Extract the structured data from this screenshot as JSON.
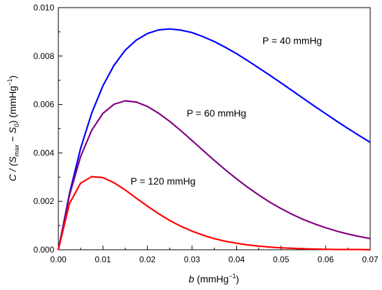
{
  "chart_data": {
    "type": "line",
    "title": "",
    "xlabel": {
      "italic": "b",
      "unit_base": " (mmHg",
      "unit_sup": "−1",
      "unit_close": ")"
    },
    "ylabel": {
      "pre": "C / (",
      "s_max": "S",
      "s_max_sub": "max",
      "minus": " − ",
      "s0": "S",
      "s0_sub": "0",
      "unit_base": ") (mmHg",
      "unit_sup": "−1",
      "unit_close": ")"
    },
    "xlim": [
      0,
      0.07
    ],
    "ylim": [
      0,
      0.01
    ],
    "x_ticks": [
      "0.00",
      "0.01",
      "0.02",
      "0.03",
      "0.04",
      "0.05",
      "0.06",
      "0.07"
    ],
    "y_ticks": [
      "0.000",
      "0.002",
      "0.004",
      "0.006",
      "0.008",
      "0.010"
    ],
    "grid": false,
    "series": [
      {
        "name": "P = 40 mmHg",
        "color": "#0000ff",
        "x": [
          0,
          0.0025,
          0.005,
          0.0075,
          0.01,
          0.0125,
          0.015,
          0.0175,
          0.02,
          0.0225,
          0.025,
          0.0275,
          0.03,
          0.0325,
          0.035,
          0.0375,
          0.04,
          0.0425,
          0.045,
          0.0475,
          0.05,
          0.0525,
          0.055,
          0.0575,
          0.06,
          0.0625,
          0.065,
          0.0675,
          0.07
        ],
        "y": [
          0,
          0.00232,
          0.00419,
          0.00565,
          0.00677,
          0.00762,
          0.00824,
          0.00866,
          0.00893,
          0.00908,
          0.00912,
          0.00907,
          0.00897,
          0.0088,
          0.0086,
          0.00836,
          0.0081,
          0.00781,
          0.00751,
          0.0072,
          0.00689,
          0.00657,
          0.00625,
          0.00593,
          0.00562,
          0.00531,
          0.00501,
          0.00472,
          0.00444
        ]
      },
      {
        "name": "P = 60 mmHg",
        "color": "#800080",
        "x": [
          0,
          0.0025,
          0.005,
          0.0075,
          0.01,
          0.0125,
          0.015,
          0.0175,
          0.02,
          0.0225,
          0.025,
          0.0275,
          0.03,
          0.0325,
          0.035,
          0.0375,
          0.04,
          0.0425,
          0.045,
          0.0475,
          0.05,
          0.0525,
          0.055,
          0.0575,
          0.06,
          0.0625,
          0.065,
          0.0675,
          0.07
        ],
        "y": [
          0,
          0.00225,
          0.00385,
          0.00494,
          0.00563,
          0.00601,
          0.00615,
          0.0061,
          0.00592,
          0.00564,
          0.0053,
          0.00492,
          0.00451,
          0.0041,
          0.00369,
          0.0033,
          0.00293,
          0.00258,
          0.00226,
          0.00196,
          0.0017,
          0.00146,
          0.00125,
          0.00107,
          0.00091,
          0.00077,
          0.00065,
          0.00055,
          0.00046
        ]
      },
      {
        "name": "P = 120 mmHg",
        "color": "#ff0000",
        "x": [
          0,
          0.0025,
          0.005,
          0.0075,
          0.01,
          0.0125,
          0.015,
          0.0175,
          0.02,
          0.0225,
          0.025,
          0.0275,
          0.03,
          0.0325,
          0.035,
          0.0375,
          0.04,
          0.0425,
          0.045,
          0.0475,
          0.05,
          0.0525,
          0.055,
          0.0575,
          0.06,
          0.0625,
          0.065,
          0.0675,
          0.07
        ],
        "y": [
          0,
          0.00191,
          0.00275,
          0.00302,
          0.00298,
          0.00277,
          0.00247,
          0.00213,
          0.0018,
          0.00149,
          0.00121,
          0.00097,
          0.00077,
          0.0006,
          0.00046,
          0.00035,
          0.00027,
          0.0002,
          0.00015,
          0.00011,
          8e-05,
          6e-05,
          4e-05,
          3e-05,
          2e-05,
          1e-05,
          1e-05,
          1e-05,
          0.0
        ]
      }
    ],
    "annotations": [
      {
        "text": "P = 40 mmHg",
        "series": 0,
        "x": 0.0525,
        "y": 0.0085
      },
      {
        "text": "P = 60 mmHg",
        "series": 1,
        "x": 0.0355,
        "y": 0.0055
      },
      {
        "text": "P = 120 mmHg",
        "series": 2,
        "x": 0.0235,
        "y": 0.0027
      }
    ]
  }
}
